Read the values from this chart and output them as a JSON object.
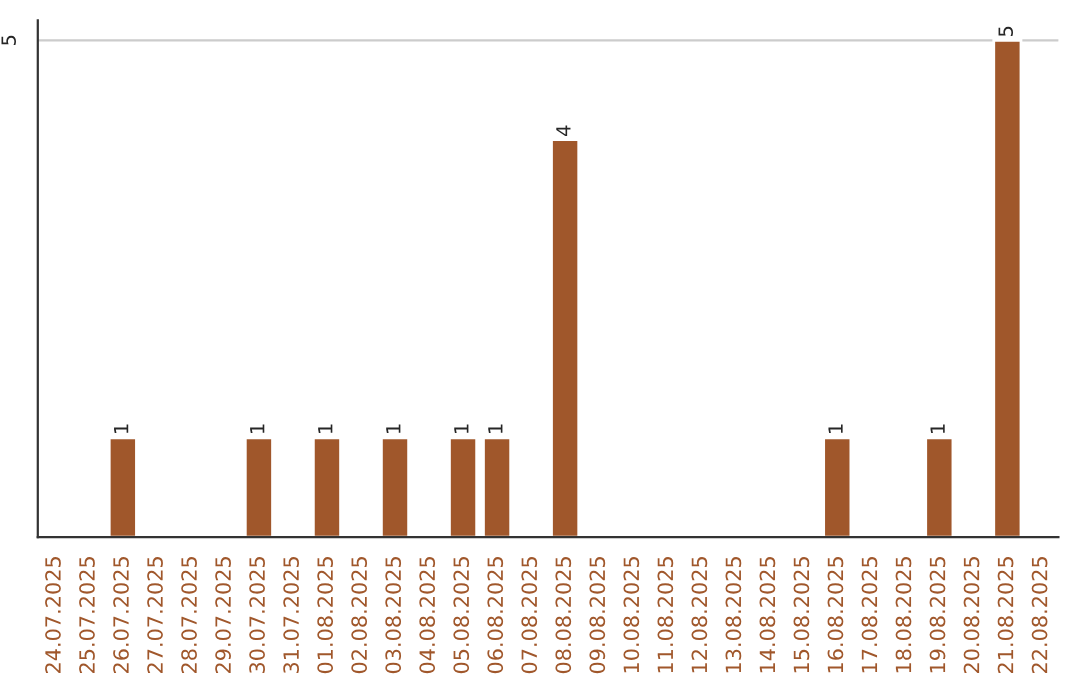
{
  "chart_data": {
    "type": "bar",
    "categories": [
      "24.07.2025",
      "25.07.2025",
      "26.07.2025",
      "27.07.2025",
      "28.07.2025",
      "29.07.2025",
      "30.07.2025",
      "31.07.2025",
      "01.08.2025",
      "02.08.2025",
      "03.08.2025",
      "04.08.2025",
      "05.08.2025",
      "06.08.2025",
      "07.08.2025",
      "08.08.2025",
      "09.08.2025",
      "10.08.2025",
      "11.08.2025",
      "12.08.2025",
      "13.08.2025",
      "14.08.2025",
      "15.08.2025",
      "16.08.2025",
      "17.08.2025",
      "18.08.2025",
      "19.08.2025",
      "20.08.2025",
      "21.08.2025",
      "22.08.2025"
    ],
    "values": [
      null,
      null,
      1,
      null,
      null,
      null,
      1,
      null,
      1,
      null,
      1,
      null,
      1,
      1,
      null,
      4,
      null,
      null,
      null,
      null,
      null,
      null,
      null,
      1,
      null,
      null,
      1,
      null,
      5,
      null
    ],
    "value_labels": [
      null,
      null,
      "1",
      null,
      null,
      null,
      "1",
      null,
      "1",
      null,
      "1",
      null,
      "1",
      "1",
      null,
      "4",
      null,
      null,
      null,
      null,
      null,
      null,
      null,
      "1",
      null,
      null,
      "1",
      null,
      "5",
      null
    ],
    "color": "#a0572b",
    "ylim": [
      0,
      5.2
    ],
    "yticks": [
      5
    ],
    "grid": "y"
  }
}
